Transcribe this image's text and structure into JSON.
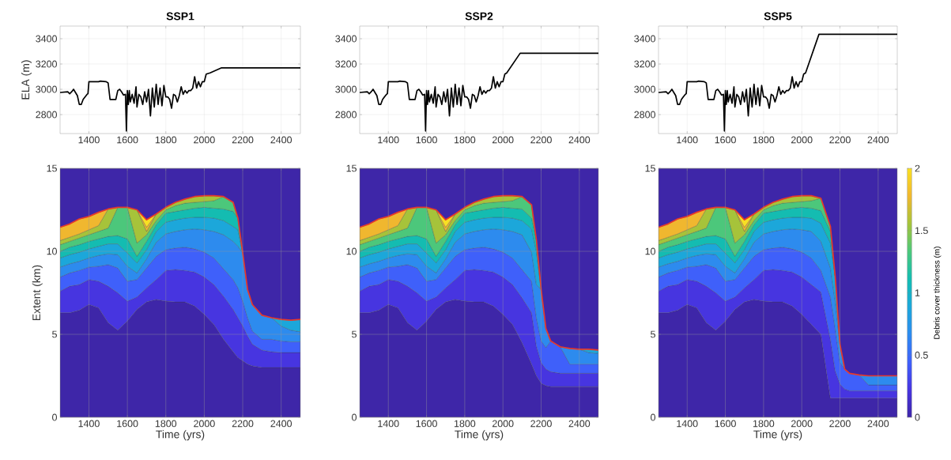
{
  "chart_data": [
    {
      "type": "line",
      "title": "SSP1",
      "ylabel": "ELA (m)",
      "color": "#000000",
      "grid": true,
      "x": [
        1250,
        1290,
        1300,
        1310,
        1320,
        1330,
        1340,
        1350,
        1360,
        1370,
        1380,
        1390,
        1395,
        1400,
        1450,
        1460,
        1490,
        1500,
        1510,
        1540,
        1550,
        1560,
        1570,
        1580,
        1590,
        1595,
        1600,
        1605,
        1610,
        1615,
        1625,
        1635,
        1645,
        1650,
        1660,
        1670,
        1680,
        1690,
        1700,
        1710,
        1720,
        1730,
        1740,
        1750,
        1760,
        1770,
        1780,
        1790,
        1800,
        1810,
        1820,
        1830,
        1840,
        1850,
        1860,
        1870,
        1880,
        1890,
        1900,
        1910,
        1920,
        1930,
        1940,
        1950,
        1960,
        1970,
        1980,
        1990,
        2000,
        2010,
        2030,
        2090,
        2500
      ],
      "values": [
        2975,
        2980,
        2965,
        2980,
        3000,
        2975,
        2950,
        2880,
        2880,
        2920,
        2940,
        2960,
        2965,
        3060,
        3060,
        3065,
        3060,
        3050,
        2920,
        2920,
        2990,
        3000,
        2980,
        2955,
        2960,
        2670,
        2990,
        2880,
        2990,
        2900,
        2960,
        2890,
        3020,
        2860,
        2960,
        2940,
        2880,
        2980,
        2900,
        3000,
        2790,
        3010,
        2860,
        3040,
        2880,
        3010,
        2870,
        3030,
        2940,
        2940,
        2920,
        2850,
        2960,
        2950,
        2900,
        2950,
        3020,
        2960,
        2990,
        2970,
        2990,
        2990,
        3010,
        3100,
        3010,
        3060,
        3020,
        3060,
        3060,
        3120,
        3130,
        3170,
        3170
      ],
      "xlim": [
        1250,
        2500
      ],
      "xticks": [
        1400,
        1600,
        1800,
        2000,
        2200,
        2400
      ],
      "ylim": [
        2650,
        3500
      ],
      "yticks": [
        2800,
        3000,
        3200,
        3400
      ]
    },
    {
      "type": "line",
      "title": "SSP2",
      "color": "#000000",
      "grid": true,
      "x": [
        1250,
        1290,
        1300,
        1310,
        1320,
        1330,
        1340,
        1350,
        1360,
        1370,
        1380,
        1390,
        1395,
        1400,
        1450,
        1460,
        1490,
        1500,
        1510,
        1540,
        1550,
        1560,
        1570,
        1580,
        1590,
        1595,
        1600,
        1605,
        1610,
        1615,
        1625,
        1635,
        1645,
        1650,
        1660,
        1670,
        1680,
        1690,
        1700,
        1710,
        1720,
        1730,
        1740,
        1750,
        1760,
        1770,
        1780,
        1790,
        1800,
        1810,
        1820,
        1830,
        1840,
        1850,
        1860,
        1870,
        1880,
        1890,
        1900,
        1910,
        1920,
        1930,
        1940,
        1950,
        1960,
        1970,
        1980,
        1990,
        2000,
        2010,
        2020,
        2090,
        2500
      ],
      "values": [
        2975,
        2980,
        2965,
        2980,
        3000,
        2975,
        2950,
        2880,
        2880,
        2920,
        2940,
        2960,
        2965,
        3060,
        3060,
        3065,
        3060,
        3050,
        2920,
        2920,
        2990,
        3000,
        2980,
        2955,
        2960,
        2670,
        2990,
        2880,
        2990,
        2900,
        2960,
        2890,
        3020,
        2860,
        2960,
        2940,
        2880,
        2980,
        2900,
        3000,
        2790,
        3010,
        2860,
        3040,
        2880,
        3010,
        2870,
        3030,
        2940,
        2940,
        2920,
        2850,
        2960,
        2950,
        2900,
        2950,
        3020,
        2960,
        2990,
        2970,
        2990,
        2990,
        3010,
        3100,
        3010,
        3060,
        3020,
        3060,
        3060,
        3120,
        3130,
        3285,
        3285
      ],
      "xlim": [
        1250,
        2500
      ],
      "xticks": [
        1400,
        1600,
        1800,
        2000,
        2200,
        2400
      ],
      "ylim": [
        2650,
        3500
      ],
      "yticks": [
        2800,
        3000,
        3200,
        3400
      ]
    },
    {
      "type": "line",
      "title": "SSP5",
      "color": "#000000",
      "grid": true,
      "x": [
        1250,
        1290,
        1300,
        1310,
        1320,
        1330,
        1340,
        1350,
        1360,
        1370,
        1380,
        1390,
        1395,
        1400,
        1450,
        1460,
        1490,
        1500,
        1510,
        1540,
        1550,
        1560,
        1570,
        1580,
        1590,
        1595,
        1600,
        1605,
        1610,
        1615,
        1625,
        1635,
        1645,
        1650,
        1660,
        1670,
        1680,
        1690,
        1700,
        1710,
        1720,
        1730,
        1740,
        1750,
        1760,
        1770,
        1780,
        1790,
        1800,
        1810,
        1820,
        1830,
        1840,
        1850,
        1860,
        1870,
        1880,
        1890,
        1900,
        1910,
        1920,
        1930,
        1940,
        1950,
        1960,
        1970,
        1980,
        1990,
        2000,
        2010,
        2020,
        2090,
        2500
      ],
      "values": [
        2975,
        2980,
        2965,
        2980,
        3000,
        2975,
        2950,
        2880,
        2880,
        2920,
        2940,
        2960,
        2965,
        3060,
        3060,
        3065,
        3060,
        3050,
        2920,
        2920,
        2990,
        3000,
        2980,
        2955,
        2960,
        2670,
        2990,
        2880,
        2990,
        2900,
        2960,
        2890,
        3020,
        2860,
        2960,
        2940,
        2880,
        2980,
        2900,
        3000,
        2790,
        3010,
        2860,
        3040,
        2880,
        3010,
        2870,
        3030,
        2940,
        2940,
        2920,
        2850,
        2960,
        2950,
        2900,
        2950,
        3020,
        2960,
        2990,
        2970,
        2990,
        2990,
        3010,
        3100,
        3010,
        3060,
        3020,
        3060,
        3060,
        3120,
        3130,
        3435,
        3435
      ],
      "xlim": [
        1250,
        2500
      ],
      "xticks": [
        1400,
        1600,
        1800,
        2000,
        2200,
        2400
      ],
      "ylim": [
        2650,
        3500
      ],
      "yticks": [
        2800,
        3000,
        3200,
        3400
      ]
    },
    {
      "type": "area",
      "stacked": true,
      "xlabel": "Time (yrs)",
      "ylabel": "Extent (km)",
      "grid": true,
      "x": [
        1250,
        1300,
        1350,
        1400,
        1450,
        1500,
        1550,
        1600,
        1650,
        1700,
        1750,
        1800,
        1850,
        1900,
        1950,
        2000,
        2050,
        2100,
        2150,
        2175,
        2200,
        2225,
        2250,
        2300,
        2350,
        2400,
        2450,
        2500
      ],
      "series": [
        {
          "color": "#3e26a8",
          "values": [
            6.3,
            6.3,
            6.45,
            6.8,
            6.6,
            5.7,
            5.25,
            5.8,
            6.5,
            6.95,
            7.1,
            7.0,
            6.95,
            6.95,
            6.7,
            6.2,
            5.6,
            4.7,
            3.95,
            3.6,
            3.4,
            3.2,
            3.1,
            3.0,
            3.0,
            3.0,
            3.0,
            3.0
          ]
        },
        {
          "color": "#4735e0",
          "values": [
            1.3,
            1.6,
            1.55,
            1.5,
            1.6,
            2.2,
            2.25,
            1.2,
            0.75,
            0.85,
            1.2,
            1.85,
            1.95,
            1.9,
            2.05,
            2.25,
            2.4,
            2.6,
            2.55,
            2.4,
            2.1,
            1.7,
            1.3,
            1.05,
            0.95,
            0.9,
            0.9,
            0.9
          ]
        },
        {
          "color": "#3f60fa",
          "values": [
            0.85,
            0.8,
            0.85,
            0.75,
            0.9,
            1.3,
            1.5,
            1.2,
            1.05,
            1.2,
            1.4,
            1.25,
            1.3,
            1.4,
            1.4,
            1.5,
            1.6,
            1.65,
            1.8,
            1.8,
            1.5,
            1.1,
            0.8,
            0.65,
            0.75,
            0.7,
            0.65,
            0.65
          ]
        },
        {
          "color": "#2d8bee",
          "values": [
            0.6,
            0.55,
            0.55,
            0.55,
            0.65,
            0.65,
            0.8,
            0.9,
            0.4,
            0.55,
            0.85,
            0.95,
            1.0,
            1.05,
            1.2,
            1.35,
            1.6,
            2.05,
            2.3,
            2.5,
            2.9,
            1.7,
            1.6,
            1.45,
            1.3,
            0.9,
            0.7,
            0.6
          ]
        },
        {
          "color": "#1ca7da",
          "values": [
            0.55,
            0.55,
            0.55,
            0.55,
            0.55,
            0.6,
            0.65,
            0.8,
            0.6,
            0.55,
            0.65,
            0.7,
            0.7,
            0.7,
            0.7,
            0.75,
            0.8,
            0.85,
            0.9,
            1.0,
            0,
            null,
            null,
            null,
            0,
            0.4,
            0.6,
            0.75
          ]
        },
        {
          "color": "#14bcb1",
          "values": [
            0.4,
            0.45,
            0.45,
            0.45,
            0.45,
            0.45,
            0.5,
            0.85,
            0.4,
            0.5,
            0.4,
            0.55,
            0.5,
            0.5,
            0.55,
            0.6,
            0.6,
            0.7,
            0.9,
            0.7,
            0,
            null,
            null,
            null,
            null,
            null,
            null,
            null
          ]
        },
        {
          "color": "#4cc77b",
          "values": [
            0.4,
            0.35,
            0.4,
            0.4,
            0.45,
            0.5,
            1.7,
            1.9,
            0.8,
            0.4,
            0.25,
            0.2,
            0.35,
            0.4,
            0.35,
            0.35,
            0.45,
            0.75,
            0.55,
            0,
            null,
            null,
            null,
            null,
            null,
            null,
            null,
            null
          ]
        },
        {
          "color": "#a6c33a",
          "values": [
            0.25,
            0.25,
            0.25,
            0.3,
            0.35,
            1.15,
            0,
            0,
            2.0,
            0.2,
            0.4,
            0.15,
            0.2,
            0.25,
            0.35,
            0.35,
            0.3,
            0,
            null,
            null,
            null,
            null,
            null,
            null,
            null,
            null,
            null,
            null
          ]
        },
        {
          "color": "#f0b72f",
          "values": [
            0.8,
            0.8,
            0.9,
            0.8,
            0.8,
            0,
            null,
            null,
            0,
            0.25,
            0,
            null,
            null,
            null,
            null,
            null,
            null,
            null,
            null,
            null,
            null,
            null,
            null,
            null,
            null,
            null,
            null,
            null
          ]
        },
        {
          "color": "#f8df23",
          "values": [
            null,
            null,
            null,
            null,
            null,
            null,
            null,
            null,
            0,
            0.45,
            0,
            null,
            null,
            null,
            null,
            null,
            null,
            null,
            null,
            null,
            null,
            null,
            null,
            null,
            null,
            null,
            null,
            null
          ]
        },
        {
          "color": "#3e26a8",
          "values": [
            3.55,
            3.35,
            3.05,
            2.9,
            2.65,
            2.45,
            2.35,
            2.35,
            2.5,
            3.1,
            2.75,
            2.35,
            2.05,
            1.85,
            1.7,
            1.65,
            1.65,
            1.7,
            2.05,
            3.0,
            5.1,
            7.3,
            8.2,
            8.85,
            9.0,
            9.1,
            9.15,
            9.1
          ]
        },
        {
          "type": "line",
          "color": "#e8392b",
          "values": [
            11.45,
            11.65,
            11.95,
            12.1,
            12.35,
            12.55,
            12.65,
            12.65,
            12.5,
            11.9,
            12.25,
            12.65,
            12.95,
            13.15,
            13.3,
            13.35,
            13.35,
            13.3,
            12.95,
            12.0,
            9.9,
            7.7,
            6.8,
            6.15,
            6.0,
            5.9,
            5.85,
            5.9
          ]
        }
      ],
      "xlim": [
        1250,
        2500
      ],
      "xticks": [
        1400,
        1600,
        1800,
        2000,
        2200,
        2400
      ],
      "ylim": [
        0,
        15
      ],
      "yticks": [
        0,
        5,
        10,
        15
      ]
    },
    {
      "type": "area",
      "stacked": true,
      "xlabel": "Time (yrs)",
      "grid": true,
      "x": [
        1250,
        1300,
        1350,
        1400,
        1450,
        1500,
        1550,
        1600,
        1650,
        1700,
        1750,
        1800,
        1850,
        1900,
        1950,
        2000,
        2050,
        2100,
        2150,
        2175,
        2200,
        2225,
        2250,
        2300,
        2350,
        2400,
        2450,
        2500
      ],
      "series": [
        {
          "color": "#3e26a8",
          "values": [
            6.3,
            6.3,
            6.45,
            6.8,
            6.6,
            5.7,
            5.25,
            5.8,
            6.5,
            6.95,
            7.1,
            7.0,
            6.95,
            6.95,
            6.7,
            6.2,
            5.6,
            4.5,
            3.2,
            2.5,
            2.05,
            1.9,
            1.85,
            1.85,
            1.85,
            1.85,
            1.85,
            1.85
          ]
        },
        {
          "color": "#4735e0",
          "values": [
            1.3,
            1.6,
            1.55,
            1.5,
            1.6,
            2.2,
            2.25,
            1.2,
            0.75,
            0.85,
            1.2,
            1.85,
            1.95,
            1.9,
            2.05,
            2.25,
            2.4,
            2.7,
            3.1,
            1.8,
            1.25,
            1.0,
            0.9,
            0.8,
            0.8,
            0.8,
            0.8,
            0.8
          ]
        },
        {
          "color": "#3f60fa",
          "values": [
            0.85,
            0.8,
            0.85,
            0.75,
            0.9,
            1.3,
            1.5,
            1.2,
            1.05,
            1.2,
            1.4,
            1.25,
            1.3,
            1.4,
            1.4,
            1.5,
            1.6,
            1.7,
            1.9,
            1.7,
            1.3,
            1.3,
            1.85,
            1.6,
            0.55,
            0.55,
            0.55,
            0.55
          ]
        },
        {
          "color": "#2d8bee",
          "values": [
            0.6,
            0.55,
            0.55,
            0.55,
            0.65,
            0.65,
            0.8,
            0.9,
            0.4,
            0.55,
            0.85,
            0.95,
            1.0,
            1.05,
            1.2,
            1.35,
            1.6,
            2.1,
            1.75,
            2.0,
            3.1,
            1.15,
            0,
            0,
            0.95,
            0.9,
            0.7,
            0.65
          ]
        },
        {
          "color": "#1ca7da",
          "values": [
            0.55,
            0.55,
            0.55,
            0.55,
            0.55,
            0.6,
            0.65,
            0.8,
            0.6,
            0.55,
            0.65,
            0.7,
            0.7,
            0.7,
            0.7,
            0.75,
            0.8,
            0.85,
            1.4,
            2.0,
            0,
            null,
            null,
            null,
            null,
            0,
            0.2,
            0.2
          ]
        },
        {
          "color": "#14bcb1",
          "values": [
            0.4,
            0.45,
            0.45,
            0.45,
            0.45,
            0.45,
            0.5,
            0.85,
            0.4,
            0.5,
            0.4,
            0.55,
            0.5,
            0.5,
            0.55,
            0.6,
            0.6,
            0.7,
            0.65,
            0.7,
            0,
            null,
            null,
            null,
            null,
            null,
            null,
            null
          ]
        },
        {
          "color": "#4cc77b",
          "values": [
            0.4,
            0.35,
            0.4,
            0.4,
            0.45,
            0.5,
            1.7,
            1.9,
            0.8,
            0.4,
            0.25,
            0.2,
            0.35,
            0.4,
            0.35,
            0.35,
            0.45,
            0.75,
            0.8,
            0,
            null,
            null,
            null,
            null,
            null,
            null,
            null,
            null
          ]
        },
        {
          "color": "#a6c33a",
          "values": [
            0.25,
            0.25,
            0.25,
            0.3,
            0.35,
            1.15,
            0,
            0,
            2.0,
            0.2,
            0.4,
            0.15,
            0.2,
            0.25,
            0.35,
            0.35,
            0.3,
            0,
            null,
            null,
            null,
            null,
            null,
            null,
            null,
            null,
            null,
            null
          ]
        },
        {
          "color": "#f0b72f",
          "values": [
            0.8,
            0.8,
            0.9,
            0.8,
            0.8,
            0,
            null,
            null,
            0,
            0.25,
            0,
            null,
            null,
            null,
            null,
            null,
            null,
            null,
            null,
            null,
            null,
            null,
            null,
            null,
            null,
            null,
            null,
            null
          ]
        },
        {
          "color": "#f8df23",
          "values": [
            null,
            null,
            null,
            null,
            null,
            null,
            null,
            null,
            0,
            0.45,
            0,
            null,
            null,
            null,
            null,
            null,
            null,
            null,
            null,
            null,
            null,
            null,
            null,
            null,
            null,
            null,
            null,
            null
          ]
        },
        {
          "color": "#3e26a8",
          "values": [
            3.55,
            3.35,
            3.05,
            2.9,
            2.65,
            2.45,
            2.35,
            2.35,
            2.5,
            3.1,
            2.75,
            2.35,
            2.05,
            1.85,
            1.7,
            1.65,
            1.65,
            1.7,
            2.2,
            4.3,
            7.3,
            9.65,
            10.4,
            10.75,
            10.85,
            10.9,
            10.9,
            10.95
          ]
        },
        {
          "type": "line",
          "color": "#e8392b",
          "values": [
            11.45,
            11.65,
            11.95,
            12.1,
            12.35,
            12.55,
            12.65,
            12.65,
            12.5,
            11.9,
            12.25,
            12.65,
            12.95,
            13.15,
            13.3,
            13.35,
            13.35,
            13.3,
            12.8,
            10.7,
            7.7,
            5.35,
            4.6,
            4.25,
            4.15,
            4.1,
            4.1,
            4.05
          ]
        }
      ],
      "xlim": [
        1250,
        2500
      ],
      "xticks": [
        1400,
        1600,
        1800,
        2000,
        2200,
        2400
      ],
      "ylim": [
        0,
        15
      ],
      "yticks": [
        0,
        5,
        10,
        15
      ]
    },
    {
      "type": "area",
      "stacked": true,
      "xlabel": "Time (yrs)",
      "grid": true,
      "clabel": "Debris cover thickness (m)",
      "clim": [
        0,
        2
      ],
      "cticks": [
        0,
        0.5,
        1,
        1.5,
        2
      ],
      "x": [
        1250,
        1300,
        1350,
        1400,
        1450,
        1500,
        1550,
        1600,
        1650,
        1700,
        1750,
        1800,
        1850,
        1900,
        1950,
        2000,
        2050,
        2100,
        2150,
        2175,
        2200,
        2225,
        2250,
        2300,
        2350,
        2400,
        2450,
        2500
      ],
      "series": [
        {
          "color": "#3e26a8",
          "values": [
            6.3,
            6.3,
            6.45,
            6.8,
            6.6,
            5.7,
            5.25,
            5.8,
            6.5,
            6.95,
            7.1,
            7.0,
            6.95,
            6.95,
            6.7,
            6.2,
            5.6,
            5.0,
            1.15,
            1.15,
            1.15,
            1.15,
            1.15,
            1.15,
            1.15,
            1.15,
            1.15,
            1.15
          ]
        },
        {
          "color": "#4735e0",
          "values": [
            1.3,
            1.6,
            1.55,
            1.5,
            1.6,
            2.2,
            2.25,
            1.2,
            0.75,
            0.85,
            1.2,
            1.85,
            1.95,
            1.9,
            2.05,
            2.25,
            2.4,
            2.55,
            3.55,
            1.65,
            0.85,
            0.55,
            0.45,
            0.45,
            0.45,
            0.45,
            0.45,
            0.45
          ]
        },
        {
          "color": "#3f60fa",
          "values": [
            0.85,
            0.8,
            0.85,
            0.75,
            0.9,
            1.3,
            1.5,
            1.2,
            1.05,
            1.2,
            1.4,
            1.25,
            1.3,
            1.4,
            1.4,
            1.5,
            1.6,
            1.3,
            2.55,
            2.55,
            1.3,
            1.2,
            1.05,
            0.95,
            0.35,
            0.35,
            0.35,
            0.35
          ]
        },
        {
          "color": "#2d8bee",
          "values": [
            0.6,
            0.55,
            0.55,
            0.55,
            0.65,
            0.65,
            0.8,
            0.9,
            0.4,
            0.55,
            0.85,
            0.95,
            1.0,
            1.05,
            1.2,
            1.35,
            1.6,
            1.75,
            1.75,
            1.65,
            1.1,
            0,
            null,
            0,
            0.55,
            0.55,
            0.55,
            0.55
          ]
        },
        {
          "color": "#1ca7da",
          "values": [
            0.55,
            0.55,
            0.55,
            0.55,
            0.55,
            0.6,
            0.65,
            0.8,
            0.6,
            0.55,
            0.65,
            0.7,
            0.7,
            0.7,
            0.7,
            0.75,
            0.8,
            1.1,
            1.5,
            1.5,
            0,
            null,
            null,
            null,
            null,
            null,
            null,
            null
          ]
        },
        {
          "color": "#14bcb1",
          "values": [
            0.4,
            0.45,
            0.45,
            0.45,
            0.45,
            0.45,
            0.5,
            0.85,
            0.4,
            0.5,
            0.4,
            0.55,
            0.5,
            0.5,
            0.55,
            0.6,
            0.6,
            0.75,
            0.7,
            0,
            null,
            null,
            null,
            null,
            null,
            null,
            null,
            null
          ]
        },
        {
          "color": "#4cc77b",
          "values": [
            0.4,
            0.35,
            0.4,
            0.4,
            0.45,
            0.5,
            1.7,
            1.9,
            0.8,
            0.4,
            0.25,
            0.2,
            0.35,
            0.4,
            0.35,
            0.35,
            0.45,
            0.75,
            0.3,
            0,
            null,
            null,
            null,
            null,
            null,
            null,
            null,
            null
          ]
        },
        {
          "color": "#a6c33a",
          "values": [
            0.25,
            0.25,
            0.25,
            0.3,
            0.35,
            1.15,
            0,
            0,
            2.0,
            0.2,
            0.4,
            0.15,
            0.2,
            0.25,
            0.35,
            0.35,
            0.3,
            0,
            null,
            null,
            null,
            null,
            null,
            null,
            null,
            null,
            null,
            null
          ]
        },
        {
          "color": "#f0b72f",
          "values": [
            0.8,
            0.8,
            0.9,
            0.8,
            0.8,
            0,
            null,
            null,
            0,
            0.25,
            0,
            null,
            null,
            null,
            null,
            null,
            null,
            null,
            null,
            null,
            null,
            null,
            null,
            null,
            null,
            null,
            null,
            null
          ]
        },
        {
          "color": "#f8df23",
          "values": [
            null,
            null,
            null,
            null,
            null,
            null,
            null,
            null,
            0,
            0.45,
            0,
            null,
            null,
            null,
            null,
            null,
            null,
            null,
            null,
            null,
            null,
            null,
            null,
            null,
            null,
            null,
            null,
            null
          ]
        },
        {
          "color": "#3e26a8",
          "values": [
            3.55,
            3.35,
            3.05,
            2.9,
            2.65,
            2.45,
            2.35,
            2.35,
            2.5,
            3.1,
            2.75,
            2.35,
            2.05,
            1.85,
            1.7,
            1.65,
            1.65,
            1.8,
            3.5,
            6.5,
            10.6,
            12.1,
            12.35,
            12.45,
            12.5,
            12.5,
            12.5,
            12.5
          ]
        },
        {
          "type": "line",
          "color": "#e8392b",
          "values": [
            11.45,
            11.65,
            11.95,
            12.1,
            12.35,
            12.55,
            12.65,
            12.65,
            12.5,
            11.9,
            12.25,
            12.65,
            12.95,
            13.15,
            13.3,
            13.35,
            13.35,
            13.2,
            11.5,
            8.5,
            4.4,
            2.9,
            2.65,
            2.55,
            2.5,
            2.5,
            2.5,
            2.5
          ]
        }
      ],
      "xlim": [
        1250,
        2500
      ],
      "xticks": [
        1400,
        1600,
        1800,
        2000,
        2200,
        2400
      ],
      "ylim": [
        0,
        15
      ],
      "yticks": [
        0,
        5,
        10,
        15
      ]
    }
  ]
}
